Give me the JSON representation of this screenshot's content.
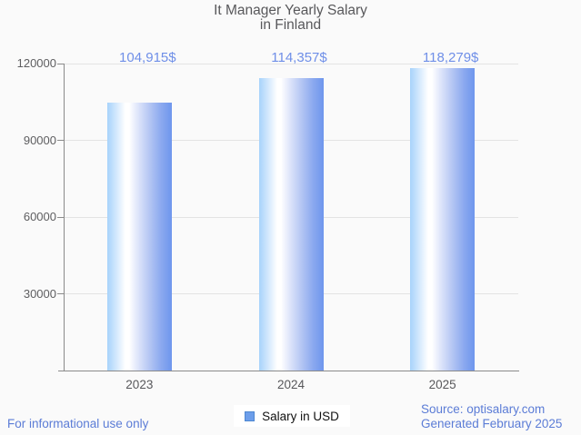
{
  "title": {
    "line1": "It Manager Yearly Salary",
    "line2": "in Finland"
  },
  "chart_data": {
    "type": "bar",
    "title": "It Manager Yearly Salary in Finland",
    "categories": [
      "2023",
      "2024",
      "2025"
    ],
    "series": [
      {
        "name": "Salary in USD",
        "values": [
          104915,
          114357,
          118279
        ]
      }
    ],
    "value_labels": [
      "104,915$",
      "114,357$",
      "118,279$"
    ],
    "xlabel": "",
    "ylabel": "",
    "ylim": [
      0,
      120000
    ],
    "yticks": [
      30000,
      60000,
      90000,
      120000
    ],
    "ytick_labels": [
      "30000",
      "60000",
      "90000",
      "120000"
    ],
    "grid": true,
    "legend_position": "bottom-center"
  },
  "legend": {
    "label": "Salary in USD",
    "swatch_color": "#6d9eea"
  },
  "footer": {
    "disclaimer": "For informational use only",
    "source_line1": "Source: optisalary.com",
    "source_line2": "Generated February 2025"
  },
  "colors": {
    "background": "#fafafa",
    "bar_gradient_left": "#a7d3fb",
    "bar_gradient_mid": "#ffffff",
    "bar_gradient_right": "#6e96ed",
    "value_label_text": "#6f8fe8",
    "footer_text": "#5b7cd6",
    "title_text": "#58585b",
    "axis_line": "#8a8a8a",
    "gridline": "#e3e3e3",
    "tick_text": "#5e5e60"
  }
}
